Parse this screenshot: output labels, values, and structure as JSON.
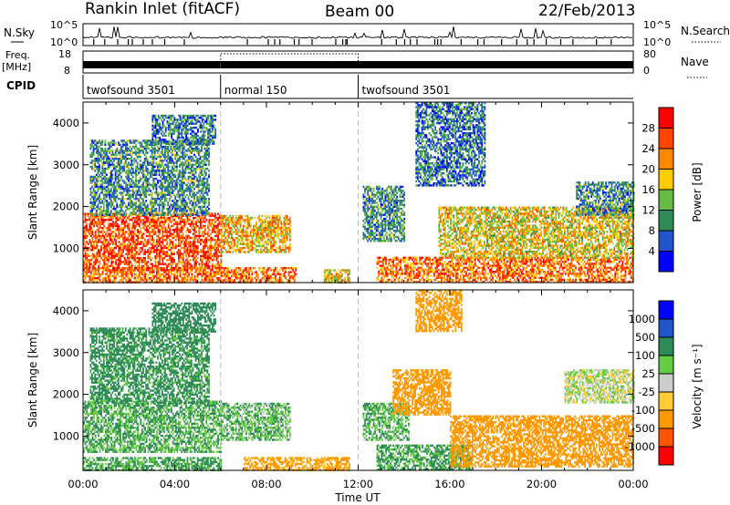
{
  "header": {
    "station": "Rankin Inlet (fitACF)",
    "beam": "Beam 00",
    "date": "22/Feb/2013"
  },
  "colors": {
    "power_scale": [
      "#0000ff",
      "#2255cc",
      "#2e8b57",
      "#66bb44",
      "#ffcc00",
      "#ff8800",
      "#ff4400",
      "#ff0000"
    ],
    "velocity_scale": [
      "#0000ff",
      "#2255cc",
      "#2e8b57",
      "#66cc44",
      "#cccccc",
      "#ffcc33",
      "#ff9900",
      "#ff5500",
      "#ff0000"
    ]
  },
  "status_panel": {
    "nsky_label": "N.Sky",
    "nsearch_label": "N.Search",
    "freq_label": "Freq.",
    "freq_unit": "[MHz]",
    "nave_label": "Nave",
    "cpid_label": "CPID",
    "nsky_ticks": [
      "10^5",
      "10^0"
    ],
    "nsearch_ticks": [
      "10^5",
      "10^0"
    ],
    "freq_ticks": [
      "18",
      "8"
    ],
    "nave_ticks": [
      "80",
      "0"
    ],
    "cpid_segments": [
      {
        "start_h": 0,
        "end_h": 6,
        "label": "twofsound 3501"
      },
      {
        "start_h": 6,
        "end_h": 12,
        "label": "normal 150"
      },
      {
        "start_h": 12,
        "end_h": 24,
        "label": "twofsound 3501"
      }
    ]
  },
  "chart_data": [
    {
      "type": "heatmap",
      "panel": "power",
      "ylabel": "Slant Range [km]",
      "xlabel": "",
      "x_range_h": [
        0,
        24
      ],
      "ylim": [
        180,
        4500
      ],
      "yticks": [
        1000,
        2000,
        3000,
        4000
      ],
      "colorbar_label": "Power [dB]",
      "colorbar_ticks": [
        "4",
        "8",
        "12",
        "16",
        "20",
        "24",
        "28"
      ],
      "colorbar_range": [
        0,
        32
      ],
      "mode_changes_h": [
        6,
        12
      ],
      "regions": [
        {
          "t0": 0.0,
          "t1": 6.0,
          "r0": 500,
          "r1": 1850,
          "lvl": 26
        },
        {
          "t0": 0.0,
          "t1": 6.0,
          "r0": 200,
          "r1": 550,
          "lvl": 24
        },
        {
          "t0": 0.3,
          "t1": 5.5,
          "r0": 1800,
          "r1": 3600,
          "lvl": 10
        },
        {
          "t0": 3.0,
          "t1": 5.8,
          "r0": 3500,
          "r1": 4200,
          "lvl": 8
        },
        {
          "t0": 6.0,
          "t1": 9.0,
          "r0": 900,
          "r1": 1800,
          "lvl": 20
        },
        {
          "t0": 6.0,
          "t1": 9.3,
          "r0": 200,
          "r1": 550,
          "lvl": 24
        },
        {
          "t0": 10.5,
          "t1": 11.6,
          "r0": 200,
          "r1": 500,
          "lvl": 18
        },
        {
          "t0": 12.2,
          "t1": 14.0,
          "r0": 1200,
          "r1": 2500,
          "lvl": 10
        },
        {
          "t0": 12.8,
          "t1": 24.0,
          "r0": 200,
          "r1": 800,
          "lvl": 24
        },
        {
          "t0": 15.5,
          "t1": 24.0,
          "r0": 800,
          "r1": 2000,
          "lvl": 18
        },
        {
          "t0": 14.5,
          "t1": 17.5,
          "r0": 2500,
          "r1": 4500,
          "lvl": 8
        },
        {
          "t0": 21.5,
          "t1": 24.0,
          "r0": 1800,
          "r1": 2600,
          "lvl": 10
        }
      ]
    },
    {
      "type": "heatmap",
      "panel": "velocity",
      "ylabel": "Slant Range [km]",
      "xlabel": "Time UT",
      "x_range_h": [
        0,
        24
      ],
      "xticks": [
        "00:00",
        "04:00",
        "08:00",
        "12:00",
        "16:00",
        "20:00",
        "00:00"
      ],
      "ylim": [
        180,
        4500
      ],
      "yticks": [
        1000,
        2000,
        3000,
        4000
      ],
      "colorbar_label": "Velocity [m s⁻¹]",
      "colorbar_ticks": [
        "1000",
        "500",
        "100",
        "25",
        "-25",
        "-100",
        "-500",
        "-1000"
      ],
      "mode_changes_h": [
        6,
        12
      ],
      "regions": [
        {
          "t0": 0.0,
          "t1": 6.0,
          "r0": 650,
          "r1": 1850,
          "lvl": 100
        },
        {
          "t0": 0.0,
          "t1": 6.0,
          "r0": 200,
          "r1": 500,
          "lvl": 120
        },
        {
          "t0": 0.3,
          "t1": 5.5,
          "r0": 1800,
          "r1": 3600,
          "lvl": 150
        },
        {
          "t0": 3.0,
          "t1": 5.8,
          "r0": 3500,
          "r1": 4200,
          "lvl": 400
        },
        {
          "t0": 6.0,
          "t1": 9.0,
          "r0": 900,
          "r1": 1800,
          "lvl": 80
        },
        {
          "t0": 7.0,
          "t1": 11.6,
          "r0": 200,
          "r1": 500,
          "lvl": -150
        },
        {
          "t0": 12.2,
          "t1": 14.2,
          "r0": 900,
          "r1": 1800,
          "lvl": 90
        },
        {
          "t0": 12.8,
          "t1": 17.0,
          "r0": 200,
          "r1": 800,
          "lvl": 120
        },
        {
          "t0": 13.5,
          "t1": 16.0,
          "r0": 1500,
          "r1": 2600,
          "lvl": -300
        },
        {
          "t0": 16.0,
          "t1": 24.0,
          "r0": 300,
          "r1": 1500,
          "lvl": -350
        },
        {
          "t0": 21.0,
          "t1": 24.0,
          "r0": 1800,
          "r1": 2600,
          "lvl": 10
        },
        {
          "t0": 14.5,
          "t1": 16.5,
          "r0": 3500,
          "r1": 4500,
          "lvl": -200
        }
      ]
    }
  ]
}
